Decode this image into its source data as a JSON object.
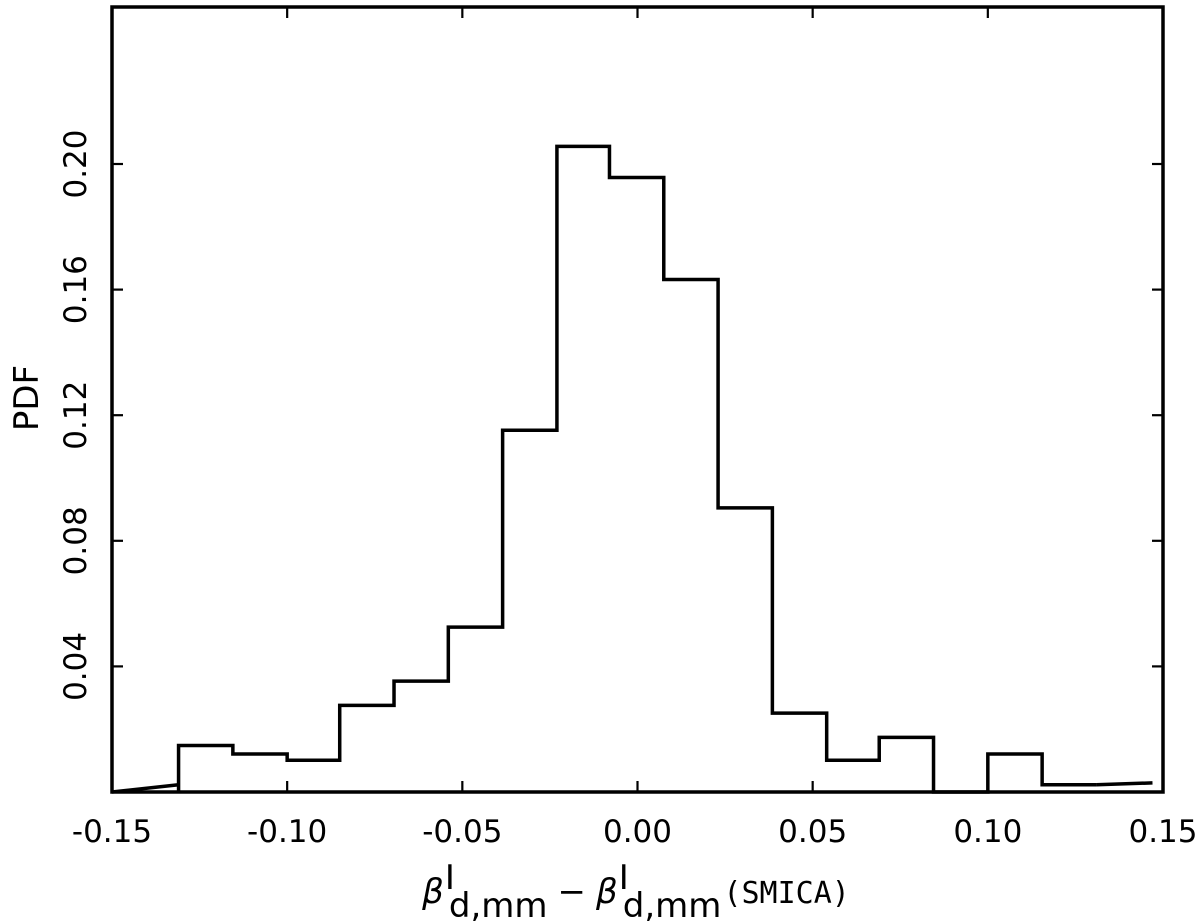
{
  "chart_data": {
    "type": "histogram",
    "title": "",
    "xlabel": {
      "beta": "β",
      "sup": "I",
      "sub": "d,mm",
      "minus": "−",
      "suffix": "(SMICA)"
    },
    "ylabel": "PDF",
    "xlim": [
      -0.15,
      0.15
    ],
    "ylim": [
      0.0,
      0.25
    ],
    "xticks": [
      -0.15,
      -0.1,
      -0.05,
      0.0,
      0.05,
      0.1,
      0.15
    ],
    "xtick_labels": [
      "-0.15",
      "-0.10",
      "-0.05",
      "0.00",
      "0.05",
      "0.10",
      "0.15"
    ],
    "yticks": [
      0.04,
      0.08,
      0.12,
      0.16,
      0.2
    ],
    "ytick_labels": [
      "0.04",
      "0.08",
      "0.12",
      "0.16",
      "0.20"
    ],
    "grid": false,
    "bin_edges": [
      -0.131,
      -0.1155,
      -0.1,
      -0.085,
      -0.0695,
      -0.054,
      -0.0385,
      -0.023,
      -0.008,
      0.0075,
      0.023,
      0.0385,
      0.054,
      0.069,
      0.0845,
      0.1,
      0.1155,
      0.131
    ],
    "values": [
      0.0148,
      0.0121,
      0.0101,
      0.0276,
      0.0353,
      0.0525,
      0.1152,
      0.2056,
      0.1957,
      0.1632,
      0.0905,
      0.0251,
      0.0101,
      0.0174,
      0.0,
      0.0121,
      0.0023
    ],
    "edge_tails": {
      "left": {
        "x": [
          -0.15,
          -0.131
        ],
        "y": [
          0.0,
          0.0023
        ]
      },
      "right": {
        "x": [
          0.131,
          0.147
        ],
        "y": [
          0.0023,
          0.0029
        ]
      }
    }
  }
}
